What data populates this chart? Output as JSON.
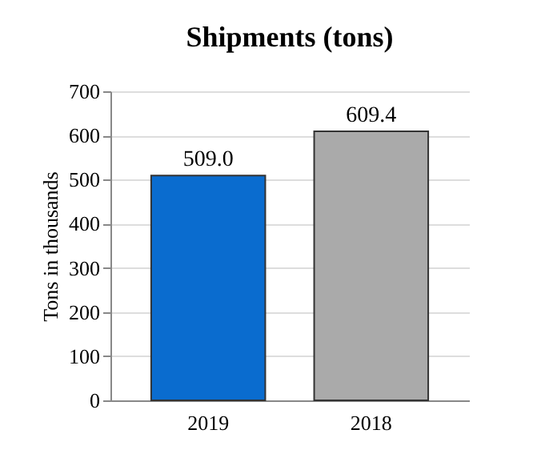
{
  "chart_data": {
    "type": "bar",
    "title": "Shipments (tons)",
    "ylabel": "Tons in thousands",
    "categories": [
      "2019",
      "2018"
    ],
    "values": [
      509.0,
      609.4
    ],
    "colors": [
      "#0a6ccf",
      "#aaaaaa"
    ],
    "value_labels": [
      "509.0",
      "609.4"
    ],
    "ylim": [
      0,
      700
    ],
    "yticks": [
      0,
      100,
      200,
      300,
      400,
      500,
      600,
      700
    ],
    "grid": "y"
  }
}
